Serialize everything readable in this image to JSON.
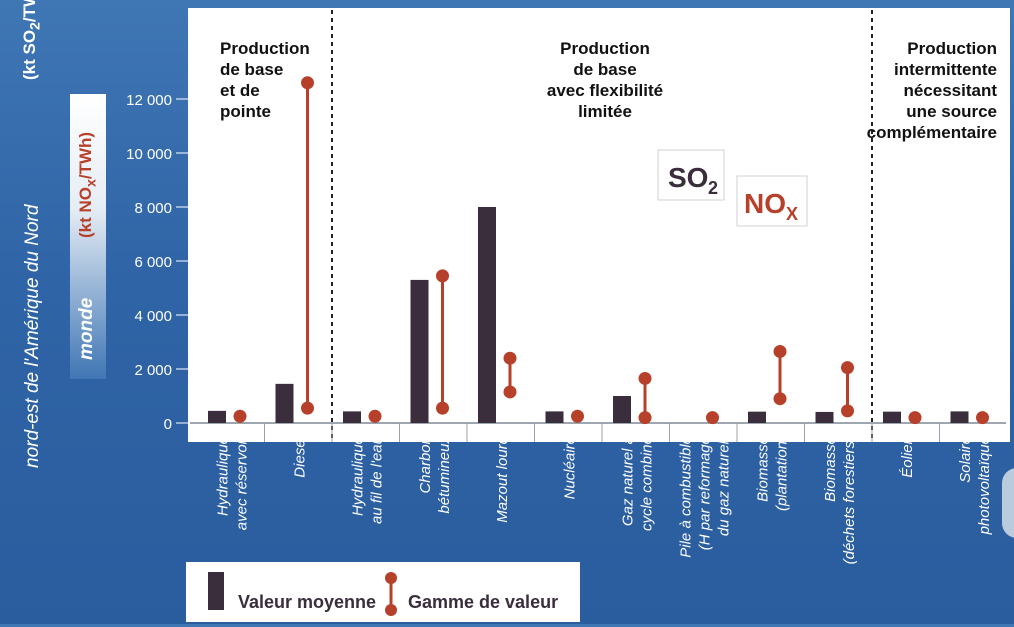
{
  "left_labels": {
    "region_label": "nord-est de l'Amérique du Nord",
    "so2_unit": "(kt SO",
    "so2_unit_sub": "2",
    "so2_unit_tail": "/TWh)",
    "world_label": "monde",
    "nox_unit": "(kt NO",
    "nox_unit_sub": "x",
    "nox_unit_tail": "/TWh)"
  },
  "badges": {
    "so2": "SO",
    "so2_sub": "2",
    "nox": "NO",
    "nox_sub": "X"
  },
  "legend": {
    "mean_label": "Valeur moyenne",
    "range_label": "Gamme de valeur"
  },
  "colors": {
    "bar": "#3a2e3c",
    "range": "#b7402a",
    "background": "#2f64a6"
  },
  "chart_data": {
    "type": "bar",
    "ylim": [
      0,
      13000
    ],
    "yticks": [
      0,
      2000,
      4000,
      6000,
      8000,
      10000,
      12000
    ],
    "ytick_labels": [
      "0",
      "2 000",
      "4 000",
      "6 000",
      "8 000",
      "10 000",
      "12 000"
    ],
    "sections": [
      {
        "title": [
          "Production",
          "de base",
          "et de",
          "pointe"
        ],
        "categories": [
          0,
          1
        ]
      },
      {
        "title": [
          "Production",
          "de base",
          "avec flexibilité",
          "limitée"
        ],
        "categories": [
          2,
          3,
          4,
          5,
          6,
          7,
          8,
          9
        ]
      },
      {
        "title": [
          "Production",
          "intermittente",
          "nécessitant",
          "une source",
          "complémentaire"
        ],
        "categories": [
          10,
          11
        ]
      }
    ],
    "categories": [
      [
        "Hydraulique",
        "avec réservoir"
      ],
      [
        "Diesel"
      ],
      [
        "Hydraulique",
        "au fil de l'eau"
      ],
      [
        "Charbon",
        "bétumineux"
      ],
      [
        "Mazout lourd"
      ],
      [
        "Nucléaire"
      ],
      [
        "Gaz naturel à",
        "cycle combiné"
      ],
      [
        "Pile à combustible",
        "(H par reformage",
        "du gaz naturel)"
      ],
      [
        "Biomasse",
        "(plantation)"
      ],
      [
        "Biomasse",
        "(déchets forestiers)"
      ],
      [
        "Éolien"
      ],
      [
        "Solaire",
        "photovoltaïque"
      ]
    ],
    "series": [
      {
        "name": "Valeur moyenne",
        "values": [
          450,
          1450,
          430,
          5300,
          8000,
          430,
          1000,
          0,
          420,
          410,
          420,
          430
        ]
      },
      {
        "name": "Gamme de valeur",
        "ranges": [
          [
            250,
            250
          ],
          [
            550,
            12600
          ],
          [
            250,
            250
          ],
          [
            550,
            5450
          ],
          [
            1150,
            2400
          ],
          [
            250,
            250
          ],
          [
            200,
            1650
          ],
          [
            200,
            200
          ],
          [
            900,
            2650
          ],
          [
            450,
            2050
          ],
          [
            200,
            200
          ],
          [
            200,
            200
          ]
        ]
      }
    ]
  }
}
